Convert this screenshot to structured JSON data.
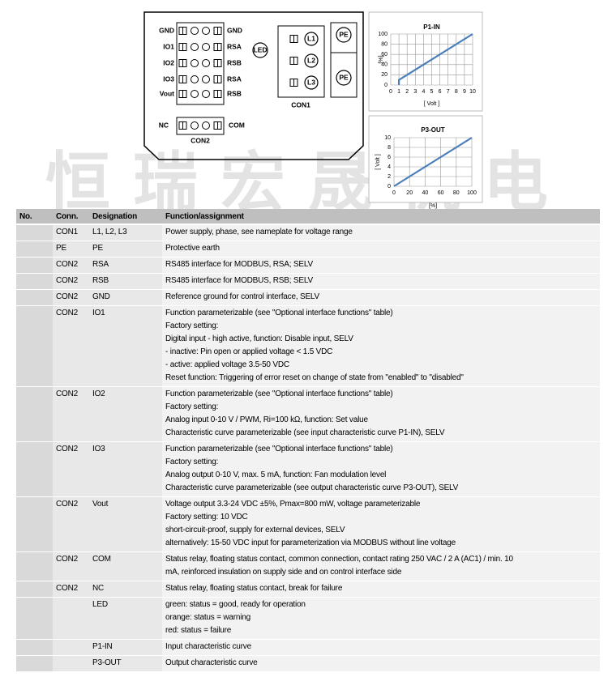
{
  "watermark": "恒瑞宏晟机电",
  "diagram": {
    "con2_left": [
      "GND",
      "IO1",
      "IO2",
      "IO3",
      "Vout"
    ],
    "con2_right": [
      "GND",
      "RSA",
      "RSB",
      "RSA",
      "RSB"
    ],
    "nc_left": "NC",
    "nc_right": "COM",
    "con2_label": "CON2",
    "led": "LED",
    "con1_pins": [
      "L1",
      "L2",
      "L3"
    ],
    "con1_label": "CON1",
    "pe": [
      "PE",
      "PE"
    ]
  },
  "chart_data": [
    {
      "type": "line",
      "title": "P1-IN",
      "x_label": "[ Volt ]",
      "y_label": "[%]",
      "x": [
        1,
        1,
        10
      ],
      "series": [
        {
          "color": "#4a7ebb",
          "values": [
            0,
            10,
            100
          ]
        }
      ],
      "xlim": [
        0,
        10
      ],
      "xticks": [
        0,
        1,
        2,
        3,
        4,
        5,
        6,
        7,
        8,
        9,
        10
      ],
      "ylim": [
        0,
        100
      ],
      "yticks": [
        0,
        20,
        40,
        60,
        80,
        100
      ],
      "grid": true
    },
    {
      "type": "line",
      "title": "P3-OUT",
      "x_label": "[%]",
      "y_label": "[ Volt ]",
      "x": [
        0,
        100
      ],
      "series": [
        {
          "color": "#4a7ebb",
          "values": [
            0,
            10
          ]
        }
      ],
      "xlim": [
        0,
        100
      ],
      "xticks": [
        0,
        20,
        40,
        60,
        80,
        100
      ],
      "ylim": [
        0,
        10
      ],
      "yticks": [
        0,
        2,
        4,
        6,
        8,
        10
      ],
      "grid": true
    }
  ],
  "table": {
    "header": [
      "No.",
      "Conn.",
      "Designation",
      "Function/assignment"
    ],
    "rows": [
      {
        "conn": "CON1",
        "designation": "L1, L2, L3",
        "function": [
          "Power supply, phase, see nameplate for voltage range"
        ]
      },
      {
        "conn": "PE",
        "designation": "PE",
        "function": [
          "Protective earth"
        ]
      },
      {
        "conn": "CON2",
        "designation": "RSA",
        "function": [
          "RS485 interface for MODBUS, RSA; SELV"
        ]
      },
      {
        "conn": "CON2",
        "designation": "RSB",
        "function": [
          "RS485 interface for MODBUS, RSB; SELV"
        ]
      },
      {
        "conn": "CON2",
        "designation": "GND",
        "function": [
          "Reference ground for control interface, SELV"
        ]
      },
      {
        "conn": "CON2",
        "designation": "IO1",
        "function": [
          "Function parameterizable (see \"Optional interface functions\" table)",
          "Factory setting:",
          "Digital input - high active, function: Disable input, SELV",
          "- inactive: Pin open or applied voltage < 1.5 VDC",
          "- active: applied voltage 3.5-50 VDC",
          "Reset function: Triggering of error reset on change of state from \"enabled\" to \"disabled\""
        ]
      },
      {
        "conn": "CON2",
        "designation": "IO2",
        "function": [
          "Function parameterizable (see \"Optional interface functions\" table)",
          "Factory setting:",
          "Analog input 0-10 V / PWM, Ri=100 kΩ, function: Set value",
          "Characteristic curve parameterizable (see input characteristic curve P1-IN), SELV"
        ]
      },
      {
        "conn": "CON2",
        "designation": "IO3",
        "function": [
          "Function parameterizable (see \"Optional interface functions\" table)",
          "Factory setting:",
          "Analog output 0-10 V, max. 5 mA, function: Fan modulation level",
          "Characteristic curve parameterizable (see output characteristic curve P3-OUT), SELV"
        ]
      },
      {
        "conn": "CON2",
        "designation": "Vout",
        "function": [
          "Voltage output 3.3-24 VDC ±5%, Pmax=800 mW, voltage parameterizable",
          "Factory setting: 10 VDC",
          "short-circuit-proof, supply for external devices, SELV",
          "alternatively: 15-50 VDC input for parameterization via MODBUS without line voltage"
        ]
      },
      {
        "conn": "CON2",
        "designation": "COM",
        "function": [
          "Status relay, floating status contact, common connection, contact rating 250 VAC / 2 A (AC1) / min. 10",
          "mA, reinforced insulation on supply side and on control interface side"
        ]
      },
      {
        "conn": "CON2",
        "designation": "NC",
        "function": [
          "Status relay, floating status contact, break for failure"
        ]
      },
      {
        "designation": "LED",
        "function": [
          "green: status = good, ready for operation",
          "orange: status = warning",
          "red: status = failure"
        ]
      },
      {
        "designation": "P1-IN",
        "function": [
          "Input characteristic curve"
        ]
      },
      {
        "designation": "P3-OUT",
        "function": [
          "Output characteristic curve"
        ]
      }
    ]
  }
}
